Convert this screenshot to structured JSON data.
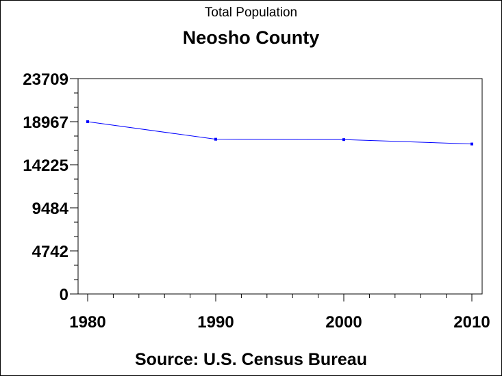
{
  "chart_data": {
    "type": "line",
    "title": "Neosho County",
    "subtitle": "Total Population",
    "footnote": "Source: U.S. Census Bureau",
    "x": [
      1980,
      1990,
      2000,
      2010
    ],
    "series": [
      {
        "values": [
          18967,
          17035,
          16997,
          16512
        ]
      }
    ],
    "xlim": [
      1980,
      2010
    ],
    "ylim": [
      0,
      23709
    ],
    "yticks": [
      0,
      4742,
      9484,
      14225,
      18967,
      23709
    ],
    "xticks": [
      1980,
      1990,
      2000,
      2010
    ],
    "grid": false,
    "line_color": "#0000ff"
  }
}
